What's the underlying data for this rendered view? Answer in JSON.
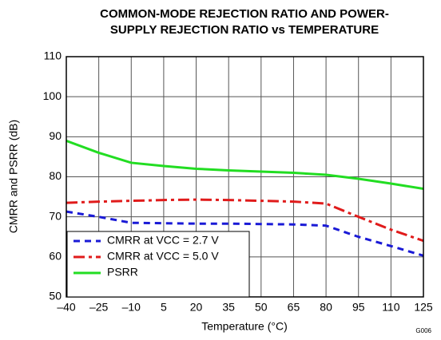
{
  "chart_data": {
    "type": "line",
    "title": [
      "COMMON-MODE REJECTION RATIO AND POWER-",
      "SUPPLY REJECTION RATIO vs TEMPERATURE"
    ],
    "xlabel": "Temperature (°C)",
    "ylabel": "CMRR and PSRR (dB)",
    "note": "G006",
    "x": [
      -40,
      -25,
      -10,
      5,
      20,
      35,
      50,
      65,
      80,
      95,
      110,
      125
    ],
    "series": [
      {
        "name": "CMRR at VCC = 2.7 V",
        "color": "#1a1ad6",
        "dash": "dashed",
        "values": [
          71.3,
          70,
          68.5,
          68.4,
          68.3,
          68.3,
          68.2,
          68.1,
          67.8,
          65,
          62.7,
          60.3
        ]
      },
      {
        "name": "CMRR at VCC = 5.0 V",
        "color": "#e01b1b",
        "dash": "dashdot",
        "values": [
          73.5,
          73.8,
          74,
          74.2,
          74.3,
          74.2,
          74,
          73.8,
          73.3,
          70,
          66.8,
          64
        ]
      },
      {
        "name": "PSRR",
        "color": "#22dd22",
        "dash": "solid",
        "values": [
          89,
          86,
          83.5,
          82.7,
          82,
          81.6,
          81.3,
          81,
          80.5,
          79.5,
          78.3,
          77
        ]
      }
    ],
    "xlim": [
      -40,
      125
    ],
    "xticks": [
      {
        "value": -40,
        "label": "–40"
      },
      {
        "value": -25,
        "label": "–25"
      },
      {
        "value": -10,
        "label": "–10"
      },
      5,
      20,
      35,
      50,
      65,
      80,
      95,
      110,
      125
    ],
    "ylim": [
      50,
      110
    ],
    "yticks": [
      50,
      60,
      70,
      80,
      90,
      100,
      110
    ],
    "grid": true,
    "legend": "lower left"
  }
}
